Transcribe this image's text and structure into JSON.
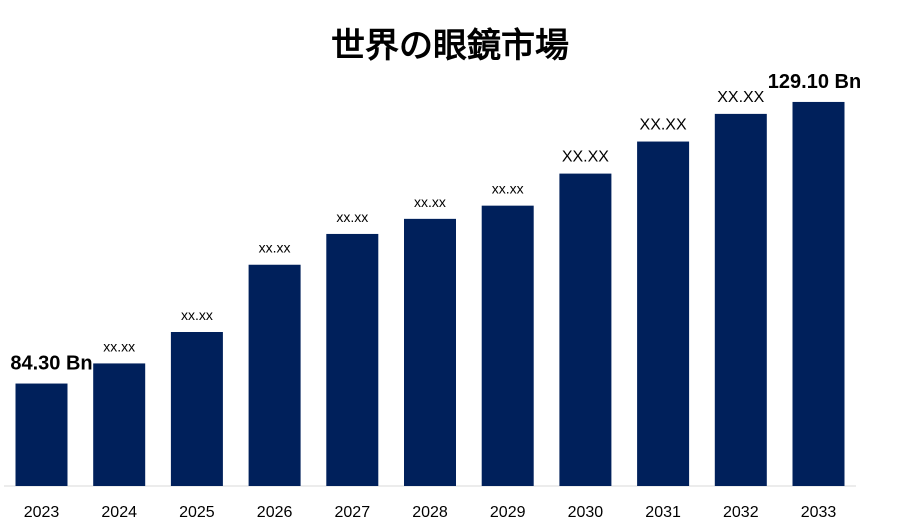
{
  "chart_data": {
    "type": "bar",
    "title": "世界の眼鏡市場",
    "categories": [
      "2023",
      "2024",
      "2025",
      "2026",
      "2027",
      "2028",
      "2029",
      "2030",
      "2031",
      "2032",
      "2033"
    ],
    "values": [
      84.3,
      87.5,
      92.5,
      103.2,
      108.1,
      110.5,
      112.6,
      117.7,
      122.8,
      127.2,
      129.1
    ],
    "data_labels": [
      "84.30 Bn",
      "xx.xx",
      "xx.xx",
      "xx.xx",
      "xx.xx",
      "xx.xx",
      "xx.xx",
      "XX.XX",
      "XX.XX",
      "XX.XX",
      "129.10 Bn"
    ],
    "bar_color": "#00205b",
    "ylim": [
      68,
      131
    ],
    "grid": false,
    "legend": "none"
  }
}
